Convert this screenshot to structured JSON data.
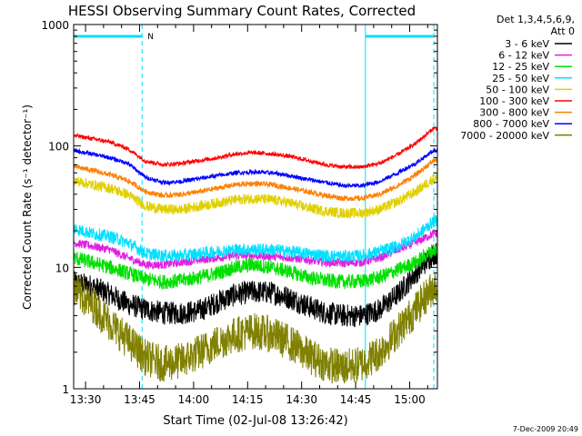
{
  "chart_data": {
    "type": "line",
    "title": "HESSI Observing Summary Count Rates, Corrected",
    "xlabel": "Start Time (02-Jul-08 13:26:42)",
    "ylabel": "Corrected Count Rate (s⁻¹ detector⁻¹)",
    "yscale": "log",
    "ylim": [
      1,
      1000
    ],
    "xlim_minutes_after_1326": [
      0,
      101
    ],
    "x_ticks": [
      "13:30",
      "13:45",
      "14:00",
      "14:15",
      "14:30",
      "14:45",
      "15:00"
    ],
    "y_ticks": [
      "1",
      "10",
      "100",
      "1000"
    ],
    "legend_header": [
      "Det 1,3,4,5,6,9,",
      "Att 0"
    ],
    "legend_position": "right",
    "footer_date": "7-Dec-2009 20:49",
    "night_marker": "N",
    "night_bars": [
      {
        "x": [
          0,
          19
        ],
        "y": 800
      },
      {
        "x": [
          81,
          100
        ],
        "y": 800
      }
    ],
    "vlines": [
      {
        "x": 19,
        "style": "dashed"
      },
      {
        "x": 81,
        "style": "solid"
      },
      {
        "x": 100,
        "style": "dashed"
      }
    ],
    "x": [
      0,
      5,
      10,
      15,
      20,
      25,
      30,
      35,
      40,
      45,
      50,
      55,
      60,
      65,
      70,
      75,
      80,
      85,
      90,
      95,
      100
    ],
    "series": [
      {
        "name": "3 - 6 keV",
        "color": "#000000",
        "values": [
          7.5,
          7,
          6,
          5,
          4.5,
          4.2,
          4.2,
          4.4,
          5.2,
          6,
          6.3,
          6.2,
          5.6,
          4.8,
          4.2,
          4,
          4,
          4.5,
          6,
          9,
          13
        ]
      },
      {
        "name": "6 - 12 keV",
        "color": "#e020e0",
        "values": [
          16,
          15,
          14,
          12,
          10.5,
          10.5,
          11,
          11.5,
          12,
          12.5,
          12.5,
          12.3,
          12,
          11.5,
          11,
          10.8,
          11,
          12,
          14,
          16,
          19
        ]
      },
      {
        "name": "12 - 25 keV",
        "color": "#00e000",
        "values": [
          12,
          11,
          10,
          9,
          8,
          7.6,
          7.8,
          8.3,
          9,
          10,
          10.5,
          10,
          9.2,
          8.3,
          7.8,
          7.6,
          7.7,
          8.3,
          9.5,
          11,
          14
        ]
      },
      {
        "name": "25 - 50 keV",
        "color": "#00e0ff",
        "values": [
          21,
          19,
          18,
          16,
          13,
          12.5,
          12.5,
          13,
          13.5,
          14,
          14,
          14,
          13.5,
          13,
          12.5,
          12.3,
          12.5,
          13.5,
          15,
          18,
          24
        ]
      },
      {
        "name": "50 - 100 keV",
        "color": "#e0d000",
        "values": [
          52,
          48,
          45,
          40,
          32,
          30,
          30,
          32,
          34,
          36,
          37,
          36,
          34,
          31,
          29,
          28,
          28,
          30,
          35,
          42,
          54
        ]
      },
      {
        "name": "100 - 300 keV",
        "color": "#ff0000",
        "values": [
          122,
          115,
          108,
          95,
          75,
          70,
          72,
          76,
          80,
          86,
          88,
          86,
          82,
          76,
          70,
          67,
          67,
          72,
          85,
          105,
          140
        ]
      },
      {
        "name": "300 - 800 keV",
        "color": "#ff8000",
        "values": [
          68,
          63,
          58,
          52,
          42,
          39,
          40,
          42,
          45,
          48,
          49,
          48,
          45,
          42,
          39,
          37,
          37,
          40,
          47,
          58,
          76
        ]
      },
      {
        "name": "800 - 7000 keV",
        "color": "#0000ff",
        "values": [
          92,
          86,
          80,
          72,
          55,
          50,
          51,
          54,
          57,
          60,
          61,
          60,
          57,
          53,
          50,
          47,
          47,
          51,
          60,
          72,
          92
        ]
      },
      {
        "name": "7000 - 20000 keV",
        "color": "#808000",
        "values": [
          6.5,
          5,
          3.5,
          2.5,
          1.8,
          1.6,
          1.7,
          2,
          2.4,
          2.8,
          3,
          2.8,
          2.4,
          1.9,
          1.6,
          1.5,
          1.6,
          2,
          3,
          4.5,
          7
        ]
      }
    ]
  },
  "colors": {
    "frame": "#000000",
    "night": "#00e0ff",
    "background": "#ffffff"
  }
}
